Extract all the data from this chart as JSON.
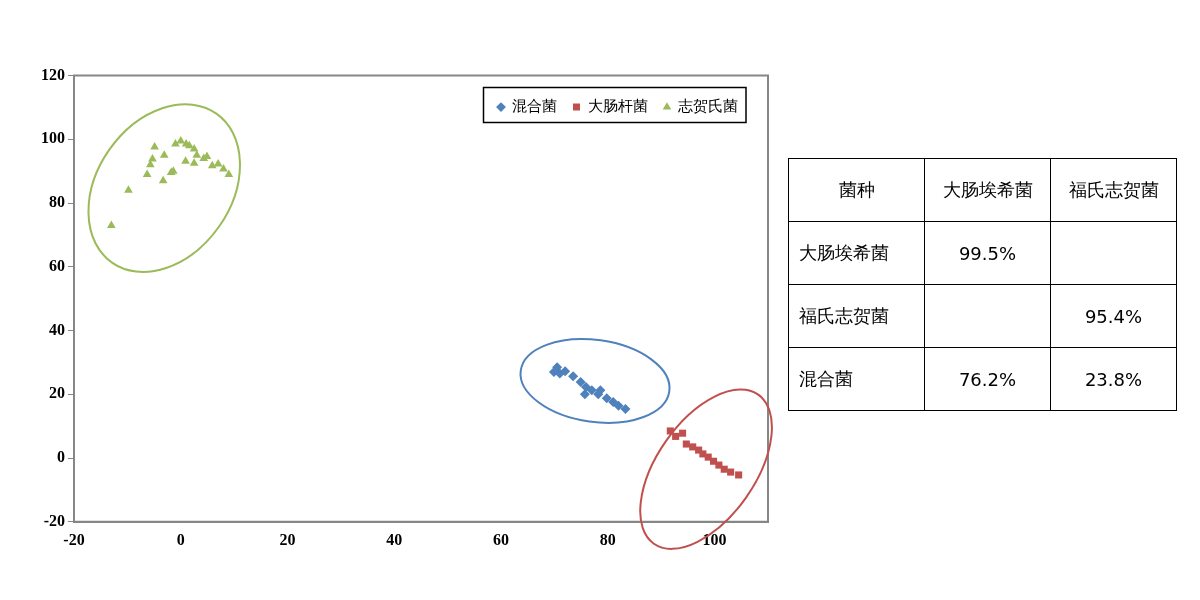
{
  "chart_data": [
    {
      "type": "scatter",
      "xlim": [
        -20,
        110
      ],
      "xticks": [
        -20,
        0,
        20,
        40,
        60,
        80,
        100
      ],
      "ylim": [
        -20,
        120
      ],
      "yticks": [
        -20,
        0,
        20,
        40,
        60,
        80,
        100,
        120
      ],
      "grid": false,
      "legend": "top right",
      "series": [
        {
          "name": "混合菌",
          "color": "#4f81bd",
          "marker": "diamond",
          "x": [
            69.9,
            70.5,
            71,
            72,
            73.5,
            74.9,
            75.9,
            75.7,
            77,
            78.2,
            78.6,
            79.8,
            81,
            82,
            83.3
          ],
          "values": [
            27,
            28.5,
            26.5,
            27.2,
            25.7,
            23.9,
            22.3,
            20,
            21.3,
            20,
            21.3,
            18.8,
            17.6,
            16.4,
            15.4
          ]
        },
        {
          "name": "大肠杆菌",
          "color": "#c0504d",
          "marker": "square",
          "x": [
            91.7,
            92.7,
            94,
            94.7,
            95.9,
            97,
            97.8,
            98.8,
            99.8,
            100.8,
            101.8,
            103,
            104.5
          ],
          "values": [
            8.5,
            6.8,
            7.8,
            4.4,
            3.5,
            2.5,
            1.3,
            0.3,
            -1,
            -2.2,
            -3.5,
            -4.4,
            -5.3
          ]
        },
        {
          "name": "志贺氏菌",
          "color": "#9bbb59",
          "marker": "triangle",
          "x": [
            -13,
            -9.8,
            -6.3,
            -5.7,
            -4.9,
            -5.3,
            -3.1,
            -3.3,
            -1.4,
            -1.8,
            -1,
            0,
            1,
            1.6,
            2.5,
            3,
            0.9,
            2.5,
            4.3,
            4.9,
            5.9,
            7,
            8,
            9
          ],
          "values": [
            73,
            84,
            89,
            92,
            97.6,
            93.8,
            95,
            87,
            90,
            89.6,
            98.5,
            99.5,
            98.5,
            98,
            97,
            95,
            93.1,
            92.5,
            94,
            94.6,
            91.7,
            92.3,
            90.7,
            89
          ]
        }
      ]
    },
    {
      "type": "heatmap",
      "ylabel": "菌种",
      "categories": [
        "大肠埃希菌",
        "福氏志贺菌"
      ],
      "y_categories": [
        "大肠埃希菌",
        "福氏志贺菌",
        "混合菌"
      ],
      "cells": [
        [
          99.5,
          null
        ],
        [
          null,
          95.4
        ],
        [
          76.2,
          23.8
        ]
      ],
      "cell_labels": [
        [
          "99.5%",
          null
        ],
        [
          null,
          "95.4%"
        ],
        [
          "76.2%",
          "23.8%"
        ]
      ]
    }
  ]
}
